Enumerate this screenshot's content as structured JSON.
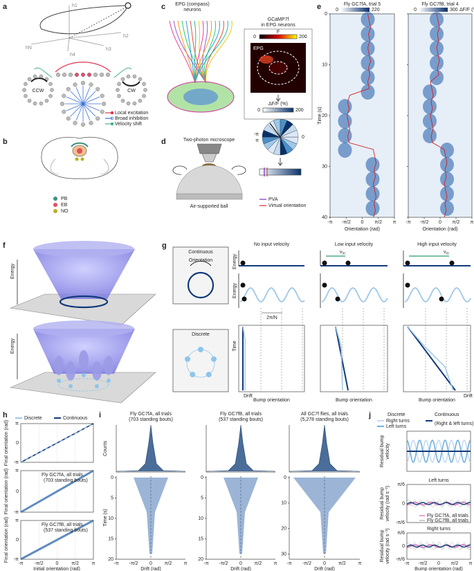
{
  "a": {
    "letter": "a",
    "axes": [
      "h1",
      "h2",
      "h3",
      "h4",
      "hN"
    ],
    "ring_left": "CCW",
    "ring_right": "CW",
    "legend": [
      "Local excitation",
      "Broad inhibition",
      "Velocity shift"
    ]
  },
  "b": {
    "letter": "b",
    "labels": [
      "PB",
      "EB",
      "NO"
    ]
  },
  "c": {
    "letter": "c",
    "title": [
      "EPG (compass)",
      "neurons"
    ],
    "inset_title": [
      "GCaMP7f",
      "in EPG neurons"
    ],
    "f_label": "F",
    "f_ticks": [
      0,
      200
    ],
    "region": "EPG",
    "dff_label": "ΔF/F (%)",
    "dff_ticks": [
      0,
      200
    ],
    "angle_labels": [
      "-π",
      "π",
      "0"
    ]
  },
  "d": {
    "letter": "d",
    "microscope": "Two-photon microscope",
    "ball": "Air-supported ball",
    "legend": [
      "PVA",
      "Virtual orientation"
    ]
  },
  "e": {
    "letter": "e",
    "plots": [
      {
        "title": "Fly GC7fA, trial 5",
        "cticks": [
          0,
          220
        ]
      },
      {
        "title": "Fly GC7fB, trial 4",
        "cticks": [
          0,
          300
        ]
      }
    ],
    "cunit": "ΔF/F (%)",
    "ylabel": "Time (s)",
    "yticks": [
      0,
      10,
      20,
      30,
      40
    ],
    "xticks": [
      "-π",
      "-π/2",
      "0",
      "π/2",
      "π"
    ],
    "xlabel": "Orientation (rad)"
  },
  "f": {
    "letter": "f",
    "ylabel": "Energy"
  },
  "g": {
    "letter": "g",
    "schemes": [
      "Continuous",
      "Discrete"
    ],
    "arrow": "Orientation",
    "columns": [
      "No input velocity",
      "Low input velocity",
      "High input velocity"
    ],
    "energy": "Energy",
    "time": "Time",
    "period": "2π/N",
    "drift": "Drift",
    "xlabel": "Bump orientation",
    "vin": [
      "v",
      "in"
    ]
  },
  "h": {
    "letter": "h",
    "legend": [
      "Discrete",
      "Continuous"
    ],
    "ylabel": "Final orientation (rad)",
    "plots": [
      {
        "title": "Fly GC7fA, all trials",
        "bouts": "(703 standing bouts)"
      },
      {
        "title": "Fly GC7fB, all trials",
        "bouts": "(537 standing bouts)"
      }
    ],
    "ticks": [
      "-π",
      "-π/2",
      "0",
      "π/2",
      "π"
    ],
    "xlabel": "Initial orientation (rad)"
  },
  "i": {
    "letter": "i",
    "plots": [
      {
        "title": "Fly GC7fA, all trials",
        "bouts": "(703 standing bouts)",
        "tticks": [
          0,
          5,
          10,
          15,
          20
        ]
      },
      {
        "title": "Fly GC7fB, all trials",
        "bouts": "(537 standing bouts)",
        "tticks": [
          0,
          5,
          10,
          15,
          20
        ]
      },
      {
        "title": "All GC7f flies, all trials",
        "bouts": "(5,278 standing bouts)",
        "tticks": [
          0,
          10,
          20,
          30
        ]
      }
    ],
    "counts": "Counts",
    "time": "Time (s)",
    "xticks": [
      "-π",
      "-π/2",
      "0",
      "π/2",
      "π"
    ],
    "xlabel": "Drift (rad)"
  },
  "j": {
    "letter": "j",
    "legend_heads": [
      "Discrete",
      "Continuous"
    ],
    "legend": [
      "Right turns",
      "Left turns",
      "(Right & left turns)"
    ],
    "ylabel_top": [
      "Residual bump",
      "velocity"
    ],
    "panels": [
      "Left turns",
      "Right turns"
    ],
    "flies": [
      "Fly GC7fA, all trials",
      "Fly GC7fB, all trials"
    ],
    "ylabel": [
      "Residual bump",
      "velocity (rad s⁻¹)"
    ],
    "yticks": [
      "π/6",
      "0",
      "-π/6"
    ],
    "xticks": [
      "-π",
      "-π/2",
      "0",
      "π/2",
      "π"
    ],
    "xlabel": "Bump orientation (rad)"
  }
}
